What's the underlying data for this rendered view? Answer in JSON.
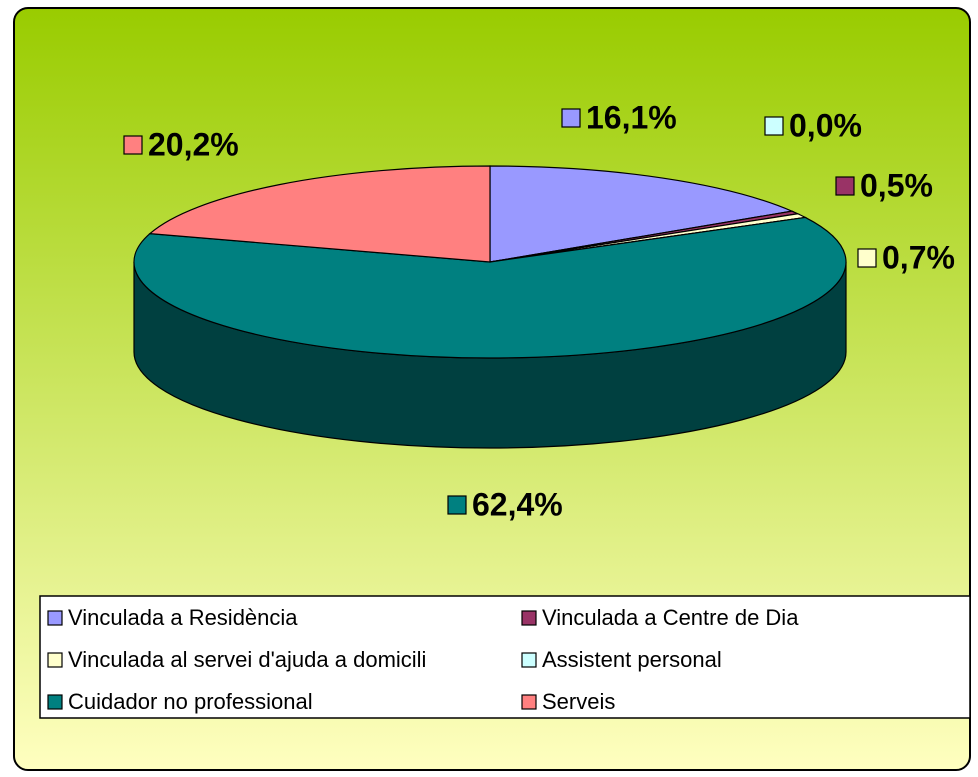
{
  "chart_data": {
    "type": "pie3d",
    "categories": [
      "Vinculada a Residència",
      "Vinculada a Centre de Dia",
      "Vinculada al servei d'ajuda a domicili",
      "Assistent personal",
      "Cuidador no professional",
      "Serveis"
    ],
    "values": [
      16.1,
      0.5,
      0.7,
      0.0,
      62.4,
      20.2
    ],
    "value_labels": [
      "16,1%",
      "0,5%",
      "0,7%",
      "0,0%",
      "62,4%",
      "20,2%"
    ],
    "colors": [
      "#9999ff",
      "#993366",
      "#ffffcc",
      "#ccffff",
      "#008080",
      "#ff8080"
    ],
    "legend": "bottom"
  }
}
